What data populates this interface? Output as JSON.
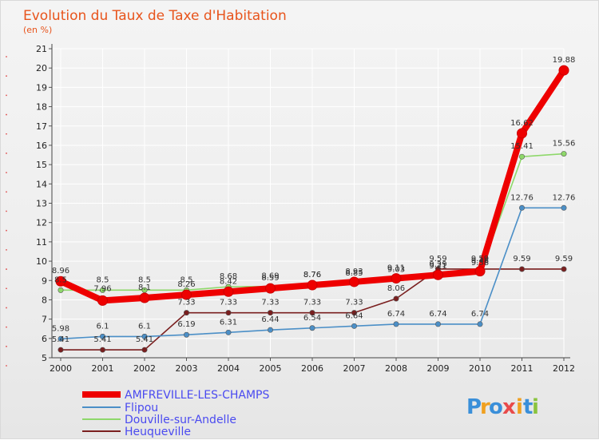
{
  "chart_data": {
    "type": "line",
    "title": "Evolution du Taux de Taxe d'Habitation",
    "subtitle": "(en %)",
    "xlabel": "",
    "ylabel": "",
    "ylim": [
      5,
      21
    ],
    "y_ticks": [
      "5",
      "6",
      "7",
      "8",
      "9",
      "10",
      "11",
      "12",
      "13",
      "14",
      "15",
      "16",
      "17",
      "18",
      "19",
      "20",
      "21"
    ],
    "categories": [
      "2000",
      "2001",
      "2002",
      "2003",
      "2004",
      "2005",
      "2006",
      "2007",
      "2008",
      "2009",
      "2010",
      "2011",
      "2012"
    ],
    "legend_position": "bottom-left",
    "series": [
      {
        "name": "AMFREVILLE-LES-CHAMPS",
        "color": "#ee0000",
        "values": [
          8.96,
          7.96,
          8.1,
          8.26,
          8.42,
          8.59,
          8.76,
          8.93,
          9.11,
          9.29,
          9.48,
          16.62,
          19.88
        ],
        "labels": [
          "8.96",
          "7.96",
          "8.1",
          "8.26",
          "8.42",
          "8.59",
          "8.76",
          "8.93",
          "9.11",
          "9.29",
          "9.48",
          "16.62",
          "19.88"
        ]
      },
      {
        "name": "Flipou",
        "color": "#4b8fc7",
        "values": [
          5.98,
          6.1,
          6.1,
          6.19,
          6.31,
          6.44,
          6.54,
          6.64,
          6.74,
          6.74,
          6.74,
          12.76,
          12.76
        ],
        "labels": [
          "5.98",
          "6.1",
          "6.1",
          "6.19",
          "6.31",
          "6.44",
          "6.54",
          "6.64",
          "6.74",
          "6.74",
          "6.74",
          "12.76",
          "12.76"
        ]
      },
      {
        "name": "Douville-sur-Andelle",
        "color": "#8ed86a",
        "values": [
          8.5,
          8.5,
          8.5,
          8.5,
          8.68,
          8.69,
          8.76,
          8.85,
          9.03,
          9.21,
          9.38,
          15.41,
          15.56
        ],
        "labels": [
          "8.5",
          "8.5",
          "8.5",
          "8.5",
          "8.68",
          "8.69",
          "8.76",
          "8.85",
          "9.03",
          "9.21",
          "9.38",
          "15.41",
          "15.56"
        ]
      },
      {
        "name": "Heuqueville",
        "color": "#7a1f1f",
        "values": [
          5.41,
          5.41,
          5.41,
          7.33,
          7.33,
          7.33,
          7.33,
          7.33,
          8.06,
          9.59,
          9.59,
          9.59,
          9.59
        ],
        "labels": [
          "5.41",
          "5.41",
          "5.41",
          "7.33",
          "7.33",
          "7.33",
          "7.33",
          "7.33",
          "8.06",
          "9.59",
          "9.59",
          "9.59",
          "9.59"
        ]
      }
    ]
  },
  "branding": {
    "logo_letters": [
      "P",
      "r",
      "o",
      "x",
      "i",
      "t",
      "i"
    ],
    "logo_colors": [
      "#3a8fd9",
      "#f0a020",
      "#3a8fd9",
      "#e84a4a",
      "#f0a020",
      "#3a8fd9",
      "#8ac43f"
    ]
  }
}
